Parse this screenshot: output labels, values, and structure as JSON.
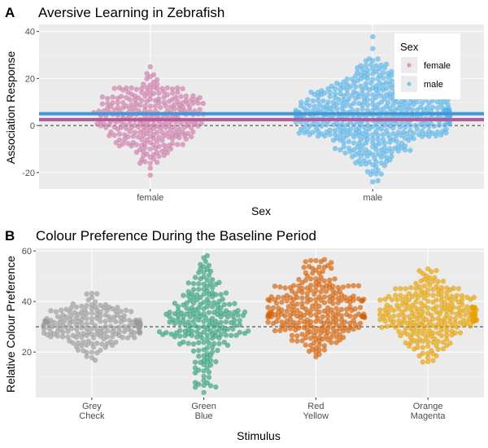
{
  "chart_data": [
    {
      "type": "scatter",
      "panel": "A",
      "title": "Aversive Learning in Zebrafish",
      "xlabel": "Sex",
      "ylabel": "Association Response",
      "categories": [
        "female",
        "male"
      ],
      "ylim": [
        -27,
        43
      ],
      "yticks": [
        -20,
        0,
        20,
        40
      ],
      "reference_line": 0,
      "legend": {
        "title": "Sex",
        "position": "top-right",
        "entries": [
          "female",
          "male"
        ]
      },
      "series": [
        {
          "name": "female",
          "color": "#cc79a7",
          "mean": 2.5,
          "n": 280,
          "min": -22,
          "max": 27
        },
        {
          "name": "male",
          "color": "#56b4e9",
          "mean": 5,
          "n": 520,
          "min": -25,
          "max": 39
        }
      ],
      "mean_line_colors": {
        "female": "#b4589a",
        "male": "#3f97d6"
      }
    },
    {
      "type": "scatter",
      "panel": "B",
      "title": "Colour Preference During the Baseline Period",
      "xlabel": "Stimulus",
      "ylabel": "Relative Colour Preference",
      "categories": [
        "Grey\nCheck",
        "Green\nBlue",
        "Red\nYellow",
        "Orange\nMagenta"
      ],
      "ylim": [
        2,
        61
      ],
      "yticks": [
        20,
        40,
        60
      ],
      "reference_line": 30,
      "series": [
        {
          "name": "Grey Check",
          "color": "#999999",
          "n": 190,
          "min": 14,
          "max": 56
        },
        {
          "name": "Green Blue",
          "color": "#2fa079",
          "n": 220,
          "min": 4,
          "max": 59
        },
        {
          "name": "Red Yellow",
          "color": "#d55e00",
          "n": 270,
          "min": 17,
          "max": 57
        },
        {
          "name": "Orange Magenta",
          "color": "#e69f00",
          "n": 260,
          "min": 12,
          "max": 58
        }
      ]
    }
  ]
}
